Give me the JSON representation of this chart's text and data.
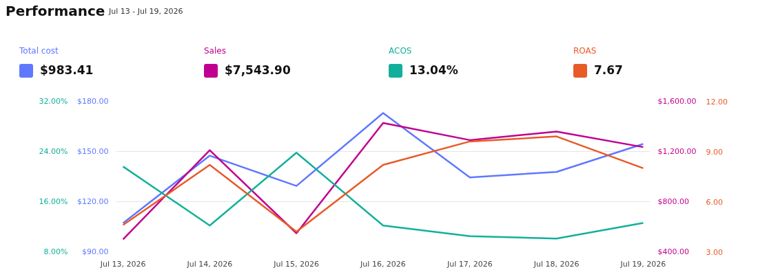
{
  "chart_data": [
    {
      "type": "line",
      "title": "Performance",
      "subtitle": "Jul 13 - Jul 19, 2026",
      "categories": [
        "Jul 13, 2026",
        "Jul 14, 2026",
        "Jul 15, 2026",
        "Jul 16, 2026",
        "Jul 17, 2026",
        "Jul 18, 2026",
        "Jul 19, 2026"
      ],
      "series": [
        {
          "name": "Total cost",
          "color": "#6078ff",
          "values": [
            107.2,
            147.5,
            129.4,
            173.0,
            134.5,
            137.8,
            154.5
          ]
        },
        {
          "name": "Sales",
          "color": "#c0008f",
          "axis": "y3",
          "values": [
            499,
            1210,
            548,
            1427,
            1291,
            1359,
            1235
          ]
        },
        {
          "name": "ACOS",
          "color": "#12b09a",
          "axis": "y2",
          "values": [
            21.6,
            12.2,
            23.8,
            12.2,
            10.5,
            10.1,
            12.6
          ]
        }
      ],
      "annotations": [
        "$983.41",
        "$7,543.90",
        "13.04%"
      ],
      "ylim": [
        90,
        180
      ],
      "yticks": [
        {
          "value": 90,
          "label": "$90.00"
        },
        {
          "value": 120,
          "label": "$120.00"
        },
        {
          "value": 150,
          "label": "$150.00"
        },
        {
          "value": 180,
          "label": "$180.00"
        }
      ],
      "y2lim": [
        8,
        32
      ],
      "y2ticks": [
        {
          "value": 8,
          "label": "8.00%"
        },
        {
          "value": 16,
          "label": "16.00%"
        },
        {
          "value": 24,
          "label": "24.00%"
        },
        {
          "value": 32,
          "label": "32.00%"
        }
      ],
      "y3lim": [
        400,
        1600
      ],
      "y3ticks": [
        {
          "value": 400,
          "label": "$400.00"
        },
        {
          "value": 800,
          "label": "$800.00"
        },
        {
          "value": 1200,
          "label": "$1,200.00"
        },
        {
          "value": 1600,
          "label": "$1,600.00"
        }
      ],
      "grid": "y",
      "legend": "top",
      "line_style": "solid"
    },
    {
      "type": "line",
      "categories": [
        "Jul 13, 2026",
        "Jul 14, 2026",
        "Jul 15, 2026",
        "Jul 16, 2026",
        "Jul 17, 2026",
        "Jul 18, 2026",
        "Jul 19, 2026"
      ],
      "series": [
        {
          "name": "ROAS",
          "color": "#e85a28",
          "values": [
            4.6,
            8.2,
            4.2,
            8.2,
            9.6,
            9.9,
            8.0
          ]
        }
      ],
      "annotations": [
        "7.67"
      ],
      "ylim": [
        3,
        12
      ],
      "yticks": [
        {
          "value": 3,
          "label": "3.00"
        },
        {
          "value": 6,
          "label": "6.00"
        },
        {
          "value": 9,
          "label": "9.00"
        },
        {
          "value": 12,
          "label": "12.00"
        }
      ],
      "tick_labels": "y",
      "legend": "top",
      "line_style": "solid"
    }
  ]
}
